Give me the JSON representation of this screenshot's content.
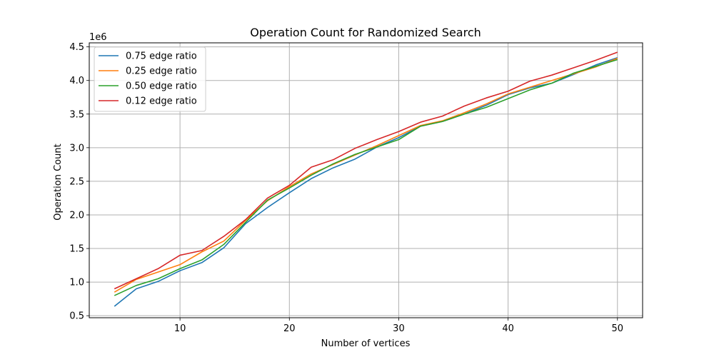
{
  "chart_data": {
    "type": "line",
    "title": "Operation Count for Randomized Search",
    "xlabel": "Number of vertices",
    "ylabel": "Operation Count",
    "y_offset_label": "1e6",
    "y_scale_factor": 1000000,
    "xlim": [
      1.7,
      52.3
    ],
    "ylim": [
      470000,
      4560000
    ],
    "x_ticks": [
      10,
      20,
      30,
      40,
      50
    ],
    "x_tick_labels": [
      "10",
      "20",
      "30",
      "40",
      "50"
    ],
    "y_ticks": [
      500000,
      1000000,
      1500000,
      2000000,
      2500000,
      3000000,
      3500000,
      4000000,
      4500000
    ],
    "y_tick_labels": [
      "0.5",
      "1.0",
      "1.5",
      "2.0",
      "2.5",
      "3.0",
      "3.5",
      "4.0",
      "4.5"
    ],
    "grid": true,
    "legend_position": "upper-left",
    "x": [
      4,
      6,
      8,
      10,
      12,
      14,
      16,
      18,
      20,
      22,
      24,
      26,
      28,
      30,
      32,
      34,
      36,
      38,
      40,
      42,
      44,
      46,
      48,
      50
    ],
    "series": [
      {
        "name": "0.75 edge ratio",
        "color": "#1f77b4",
        "values": [
          640000,
          900000,
          1010000,
          1170000,
          1290000,
          1510000,
          1870000,
          2110000,
          2330000,
          2540000,
          2700000,
          2830000,
          3010000,
          3150000,
          3320000,
          3390000,
          3500000,
          3630000,
          3790000,
          3890000,
          3960000,
          4090000,
          4230000,
          4340000
        ]
      },
      {
        "name": "0.25 edge ratio",
        "color": "#ff7f0e",
        "values": [
          850000,
          1040000,
          1150000,
          1260000,
          1450000,
          1610000,
          1920000,
          2210000,
          2420000,
          2610000,
          2750000,
          2890000,
          3030000,
          3180000,
          3330000,
          3400000,
          3520000,
          3650000,
          3800000,
          3900000,
          4000000,
          4100000,
          4200000,
          4330000
        ]
      },
      {
        "name": "0.50 edge ratio",
        "color": "#2ca02c",
        "values": [
          800000,
          950000,
          1050000,
          1200000,
          1330000,
          1560000,
          1890000,
          2220000,
          2400000,
          2590000,
          2760000,
          2900000,
          3010000,
          3120000,
          3320000,
          3390000,
          3500000,
          3600000,
          3730000,
          3860000,
          3960000,
          4110000,
          4210000,
          4310000
        ]
      },
      {
        "name": "0.12 edge ratio",
        "color": "#d62728",
        "values": [
          900000,
          1050000,
          1200000,
          1400000,
          1470000,
          1680000,
          1930000,
          2250000,
          2440000,
          2710000,
          2820000,
          2990000,
          3120000,
          3240000,
          3380000,
          3470000,
          3620000,
          3740000,
          3840000,
          3990000,
          4080000,
          4190000,
          4300000,
          4420000
        ]
      }
    ]
  }
}
